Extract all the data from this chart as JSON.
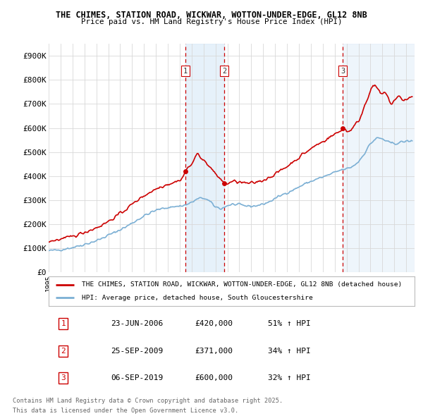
{
  "title1": "THE CHIMES, STATION ROAD, WICKWAR, WOTTON-UNDER-EDGE, GL12 8NB",
  "title2": "Price paid vs. HM Land Registry's House Price Index (HPI)",
  "background_color": "#ffffff",
  "grid_color": "#d8d8d8",
  "hpi_color": "#7bafd4",
  "hpi_fill_color": "#d6e8f7",
  "price_color": "#cc0000",
  "vline_color": "#cc0000",
  "sale_points": [
    {
      "date_num": 2006.47,
      "price": 420000,
      "label": "1"
    },
    {
      "date_num": 2009.73,
      "price": 371000,
      "label": "2"
    },
    {
      "date_num": 2019.68,
      "price": 600000,
      "label": "3"
    }
  ],
  "legend_line1": "THE CHIMES, STATION ROAD, WICKWAR, WOTTON-UNDER-EDGE, GL12 8NB (detached house)",
  "legend_line2": "HPI: Average price, detached house, South Gloucestershire",
  "table_rows": [
    {
      "num": "1",
      "date": "23-JUN-2006",
      "price": "£420,000",
      "hpi": "51% ↑ HPI"
    },
    {
      "num": "2",
      "date": "25-SEP-2009",
      "price": "£371,000",
      "hpi": "34% ↑ HPI"
    },
    {
      "num": "3",
      "date": "06-SEP-2019",
      "price": "£600,000",
      "hpi": "32% ↑ HPI"
    }
  ],
  "footnote1": "Contains HM Land Registry data © Crown copyright and database right 2025.",
  "footnote2": "This data is licensed under the Open Government Licence v3.0.",
  "ylim": [
    0,
    950000
  ],
  "yticks": [
    0,
    100000,
    200000,
    300000,
    400000,
    500000,
    600000,
    700000,
    800000,
    900000
  ],
  "ytick_labels": [
    "£0",
    "£100K",
    "£200K",
    "£300K",
    "£400K",
    "£500K",
    "£600K",
    "£700K",
    "£800K",
    "£900K"
  ],
  "xlim_start": 1995.0,
  "xlim_end": 2025.7,
  "hpi_base_points": [
    [
      1995.0,
      90000
    ],
    [
      1995.5,
      92000
    ],
    [
      1996.0,
      95000
    ],
    [
      1996.5,
      99000
    ],
    [
      1997.0,
      104000
    ],
    [
      1997.5,
      110000
    ],
    [
      1998.0,
      117000
    ],
    [
      1998.5,
      124000
    ],
    [
      1999.0,
      132000
    ],
    [
      1999.5,
      142000
    ],
    [
      2000.0,
      155000
    ],
    [
      2000.5,
      165000
    ],
    [
      2001.0,
      178000
    ],
    [
      2001.5,
      190000
    ],
    [
      2002.0,
      205000
    ],
    [
      2002.5,
      220000
    ],
    [
      2003.0,
      235000
    ],
    [
      2003.5,
      247000
    ],
    [
      2004.0,
      258000
    ],
    [
      2004.5,
      265000
    ],
    [
      2005.0,
      270000
    ],
    [
      2005.5,
      273000
    ],
    [
      2006.0,
      276000
    ],
    [
      2006.5,
      280000
    ],
    [
      2007.0,
      291000
    ],
    [
      2007.5,
      305000
    ],
    [
      2008.0,
      310000
    ],
    [
      2008.5,
      295000
    ],
    [
      2009.0,
      272000
    ],
    [
      2009.5,
      265000
    ],
    [
      2010.0,
      278000
    ],
    [
      2010.5,
      283000
    ],
    [
      2011.0,
      280000
    ],
    [
      2011.5,
      277000
    ],
    [
      2012.0,
      275000
    ],
    [
      2012.5,
      278000
    ],
    [
      2013.0,
      284000
    ],
    [
      2013.5,
      293000
    ],
    [
      2014.0,
      307000
    ],
    [
      2014.5,
      320000
    ],
    [
      2015.0,
      332000
    ],
    [
      2015.5,
      342000
    ],
    [
      2016.0,
      355000
    ],
    [
      2016.5,
      368000
    ],
    [
      2017.0,
      378000
    ],
    [
      2017.5,
      388000
    ],
    [
      2018.0,
      396000
    ],
    [
      2018.5,
      405000
    ],
    [
      2019.0,
      415000
    ],
    [
      2019.5,
      425000
    ],
    [
      2020.0,
      430000
    ],
    [
      2020.5,
      440000
    ],
    [
      2021.0,
      460000
    ],
    [
      2021.5,
      495000
    ],
    [
      2022.0,
      535000
    ],
    [
      2022.5,
      558000
    ],
    [
      2023.0,
      555000
    ],
    [
      2023.5,
      540000
    ],
    [
      2024.0,
      535000
    ],
    [
      2024.5,
      540000
    ],
    [
      2025.0,
      545000
    ],
    [
      2025.5,
      545000
    ]
  ],
  "prop_base_points": [
    [
      1995.0,
      130000
    ],
    [
      1995.5,
      133000
    ],
    [
      1996.0,
      138000
    ],
    [
      1996.5,
      143000
    ],
    [
      1997.0,
      150000
    ],
    [
      1997.5,
      158000
    ],
    [
      1998.0,
      167000
    ],
    [
      1998.5,
      176000
    ],
    [
      1999.0,
      186000
    ],
    [
      1999.5,
      198000
    ],
    [
      2000.0,
      212000
    ],
    [
      2000.5,
      228000
    ],
    [
      2001.0,
      245000
    ],
    [
      2001.5,
      263000
    ],
    [
      2002.0,
      283000
    ],
    [
      2002.5,
      302000
    ],
    [
      2003.0,
      319000
    ],
    [
      2003.5,
      333000
    ],
    [
      2004.0,
      347000
    ],
    [
      2004.5,
      358000
    ],
    [
      2005.0,
      367000
    ],
    [
      2005.5,
      374000
    ],
    [
      2006.0,
      383000
    ],
    [
      2006.25,
      395000
    ],
    [
      2006.47,
      420000
    ],
    [
      2006.7,
      435000
    ],
    [
      2007.0,
      450000
    ],
    [
      2007.3,
      475000
    ],
    [
      2007.5,
      495000
    ],
    [
      2007.8,
      480000
    ],
    [
      2008.0,
      465000
    ],
    [
      2008.3,
      450000
    ],
    [
      2008.6,
      435000
    ],
    [
      2008.9,
      415000
    ],
    [
      2009.0,
      405000
    ],
    [
      2009.3,
      395000
    ],
    [
      2009.5,
      385000
    ],
    [
      2009.73,
      371000
    ],
    [
      2009.9,
      368000
    ],
    [
      2010.0,
      370000
    ],
    [
      2010.3,
      375000
    ],
    [
      2010.6,
      378000
    ],
    [
      2011.0,
      375000
    ],
    [
      2011.3,
      372000
    ],
    [
      2011.6,
      370000
    ],
    [
      2012.0,
      370000
    ],
    [
      2012.3,
      373000
    ],
    [
      2012.6,
      378000
    ],
    [
      2013.0,
      383000
    ],
    [
      2013.3,
      390000
    ],
    [
      2013.6,
      398000
    ],
    [
      2014.0,
      408000
    ],
    [
      2014.3,
      418000
    ],
    [
      2014.6,
      428000
    ],
    [
      2015.0,
      440000
    ],
    [
      2015.3,
      452000
    ],
    [
      2015.6,
      463000
    ],
    [
      2016.0,
      477000
    ],
    [
      2016.3,
      490000
    ],
    [
      2016.6,
      500000
    ],
    [
      2017.0,
      513000
    ],
    [
      2017.3,
      524000
    ],
    [
      2017.6,
      533000
    ],
    [
      2018.0,
      543000
    ],
    [
      2018.3,
      553000
    ],
    [
      2018.6,
      562000
    ],
    [
      2019.0,
      574000
    ],
    [
      2019.4,
      585000
    ],
    [
      2019.68,
      600000
    ],
    [
      2019.9,
      595000
    ],
    [
      2020.0,
      585000
    ],
    [
      2020.3,
      590000
    ],
    [
      2020.6,
      605000
    ],
    [
      2021.0,
      630000
    ],
    [
      2021.3,
      660000
    ],
    [
      2021.5,
      695000
    ],
    [
      2021.8,
      730000
    ],
    [
      2022.0,
      755000
    ],
    [
      2022.2,
      770000
    ],
    [
      2022.4,
      780000
    ],
    [
      2022.6,
      760000
    ],
    [
      2022.8,
      745000
    ],
    [
      2023.0,
      740000
    ],
    [
      2023.2,
      745000
    ],
    [
      2023.4,
      735000
    ],
    [
      2023.6,
      710000
    ],
    [
      2023.8,
      700000
    ],
    [
      2024.0,
      715000
    ],
    [
      2024.2,
      725000
    ],
    [
      2024.4,
      730000
    ],
    [
      2024.6,
      720000
    ],
    [
      2024.8,
      715000
    ],
    [
      2025.0,
      720000
    ],
    [
      2025.3,
      725000
    ],
    [
      2025.5,
      730000
    ]
  ]
}
